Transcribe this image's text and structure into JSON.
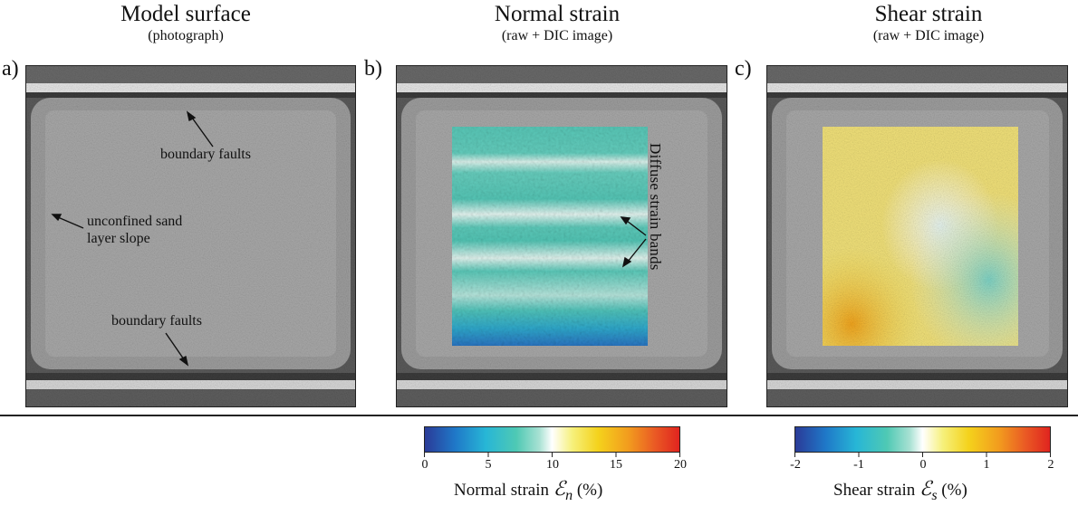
{
  "panels": [
    {
      "letter": "a)",
      "title": "Model surface",
      "subtitle": "(photograph)"
    },
    {
      "letter": "b)",
      "title": "Normal strain",
      "subtitle": "(raw + DIC image)"
    },
    {
      "letter": "c)",
      "title": "Shear strain",
      "subtitle": "(raw + DIC image)"
    }
  ],
  "annotations": {
    "boundary_faults_top": "boundary faults",
    "unconfined_line1": "unconfined sand",
    "unconfined_line2": "layer slope",
    "boundary_faults_bottom": "boundary faults",
    "diffuse_bands": "Diffuse strain bands"
  },
  "colorbars": {
    "normal": {
      "label_prefix": "Normal strain ",
      "symbol": "ℰ",
      "subscript": "n",
      "unit": " (%)",
      "ticks": [
        "0",
        "5",
        "10",
        "15",
        "20"
      ]
    },
    "shear": {
      "label_prefix": "Shear strain ",
      "symbol": "ℰ",
      "subscript": "s",
      "unit": " (%)",
      "ticks": [
        "-2",
        "-1",
        "0",
        "1",
        "2"
      ]
    }
  },
  "colors": {
    "colormap": [
      "#2b3a97",
      "#1f78c8",
      "#27b6d6",
      "#4fc9b4",
      "#a8e1d3",
      "#ffffff",
      "#f6f07a",
      "#f4d21c",
      "#f29b1e",
      "#ea5b24",
      "#e0231f"
    ],
    "normal_overlay": "#5cc9b8",
    "shear_overlay": "#f2e27a"
  }
}
